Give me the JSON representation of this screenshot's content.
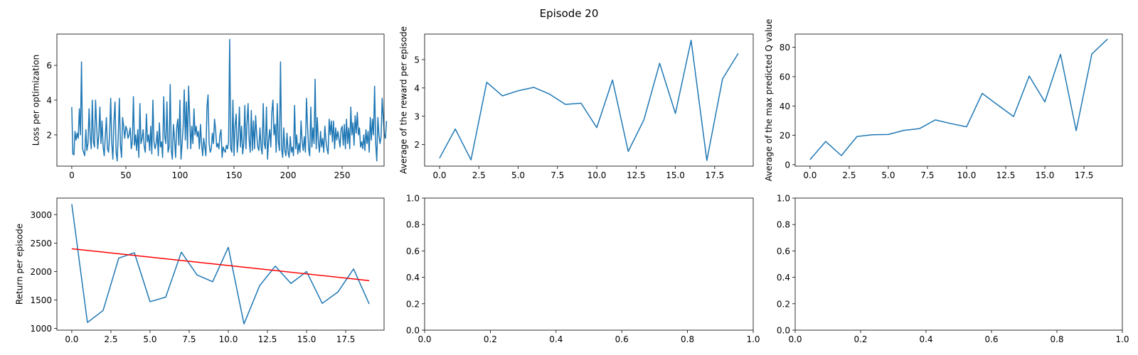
{
  "figure": {
    "title": "Episode 20"
  },
  "chart_data": [
    {
      "type": "line",
      "ylabel": "Loss per optimization",
      "xlim": [
        -13.75,
        288.75
      ],
      "ylim": [
        0.2,
        7.8
      ],
      "xticks": [
        0,
        50,
        100,
        150,
        200,
        250
      ],
      "xtick_labels": [
        "0",
        "50",
        "100",
        "150",
        "200",
        "250"
      ],
      "yticks": [
        2,
        4,
        6
      ],
      "ytick_labels": [
        "2",
        "4",
        "6"
      ],
      "series": [
        {
          "color": "#1f77b4",
          "y": [
            3.6,
            0.9,
            0.85,
            2.2,
            1.7,
            2.1,
            1.8,
            3.5,
            2.0,
            6.2,
            1.2,
            1.0,
            0.8,
            2.3,
            1.1,
            1.5,
            3.5,
            1.9,
            1.2,
            4.0,
            1.6,
            1.3,
            4.0,
            2.5,
            1.2,
            2.0,
            3.6,
            1.5,
            2.8,
            1.3,
            0.8,
            1.9,
            3.0,
            1.2,
            1.0,
            2.0,
            4.1,
            1.5,
            0.6,
            2.8,
            3.9,
            1.0,
            0.5,
            2.0,
            4.1,
            1.4,
            0.7,
            3.0,
            2.5,
            1.8,
            2.5,
            2.3,
            1.8,
            2.0,
            2.4,
            1.2,
            1.6,
            4.2,
            1.4,
            2.0,
            1.1,
            2.3,
            0.7,
            3.8,
            1.5,
            1.8,
            2.3,
            1.3,
            1.0,
            3.2,
            1.6,
            2.0,
            1.1,
            2.5,
            0.9,
            4.0,
            1.6,
            1.2,
            1.5,
            2.2,
            0.8,
            2.7,
            1.3,
            1.6,
            0.7,
            4.2,
            1.9,
            1.5,
            3.9,
            1.0,
            1.3,
            4.9,
            1.1,
            0.6,
            2.6,
            1.8,
            0.7,
            2.4,
            2.9,
            1.4,
            4.0,
            0.6,
            1.5,
            2.5,
            4.6,
            1.7,
            3.9,
            1.2,
            4.8,
            3.0,
            1.2,
            2.5,
            1.5,
            3.5,
            2.0,
            2.5,
            1.9,
            2.2,
            1.2,
            2.6,
            1.5,
            0.8,
            1.8,
            1.3,
            0.8,
            3.6,
            4.3,
            1.5,
            1.0,
            1.2,
            2.1,
            1.5,
            2.9,
            2.3,
            1.3,
            1.5,
            1.2,
            2.0,
            2.3,
            0.7,
            1.3,
            1.1,
            1.0,
            1.4,
            1.2,
            1.6,
            7.5,
            1.2,
            1.0,
            4.0,
            0.8,
            2.5,
            3.2,
            1.0,
            1.8,
            3.6,
            1.3,
            2.5,
            0.9,
            1.5,
            3.7,
            1.2,
            2.6,
            3.8,
            1.7,
            1.0,
            3.4,
            1.1,
            2.8,
            1.2,
            3.1,
            2.0,
            1.3,
            1.1,
            2.4,
            1.3,
            0.9,
            3.8,
            1.5,
            1.2,
            3.6,
            0.6,
            1.7,
            2.3,
            1.3,
            3.3,
            4.0,
            2.0,
            2.6,
            1.0,
            3.8,
            1.6,
            1.1,
            6.2,
            1.2,
            0.7,
            2.4,
            1.1,
            0.8,
            2.1,
            1.0,
            0.7,
            1.9,
            1.0,
            1.3,
            0.8,
            3.7,
            1.2,
            2.0,
            0.9,
            1.5,
            1.0,
            2.8,
            1.6,
            1.1,
            1.9,
            1.0,
            4.1,
            2.5,
            1.2,
            0.8,
            3.6,
            1.3,
            2.4,
            1.5,
            5.2,
            1.2,
            3.0,
            1.6,
            1.0,
            2.2,
            1.3,
            1.8,
            1.0,
            2.5,
            1.7,
            1.2,
            0.9,
            2.9,
            2.0,
            2.8,
            1.6,
            2.8,
            1.2,
            2.4,
            1.7,
            2.2,
            1.8,
            1.3,
            2.3,
            2.5,
            1.4,
            2.6,
            1.2,
            2.9,
            1.5,
            2.4,
            1.2,
            3.6,
            2.0,
            2.7,
            1.4,
            3.1,
            2.1,
            3.3,
            2.0,
            2.4,
            1.3,
            1.6,
            1.2,
            2.0,
            1.1,
            2.3,
            1.5,
            2.2,
            1.0,
            3.0,
            1.7,
            2.9,
            2.0,
            4.8,
            1.5,
            0.5,
            3.0,
            2.0,
            1.5,
            1.9,
            4.1,
            3.0,
            2.0,
            1.8,
            2.8
          ]
        }
      ]
    },
    {
      "type": "line",
      "ylabel": "Average of the reward per episode",
      "xlim": [
        -0.95,
        19.95
      ],
      "ylim": [
        1.24,
        5.9
      ],
      "xticks": [
        0,
        2.5,
        5,
        7.5,
        10,
        12.5,
        15,
        17.5
      ],
      "xtick_labels": [
        "0.0",
        "2.5",
        "5.0",
        "7.5",
        "10.0",
        "12.5",
        "15.0",
        "17.5"
      ],
      "yticks": [
        2,
        3,
        4,
        5
      ],
      "ytick_labels": [
        "2",
        "3",
        "4",
        "5"
      ],
      "series": [
        {
          "color": "#1f77b4",
          "x": [
            0,
            1,
            2,
            3,
            4,
            5,
            6,
            7,
            8,
            9,
            10,
            11,
            12,
            13,
            14,
            15,
            16,
            17,
            18,
            19
          ],
          "y": [
            1.52,
            2.55,
            1.46,
            4.2,
            3.72,
            3.9,
            4.02,
            3.78,
            3.42,
            3.46,
            2.6,
            4.28,
            1.76,
            2.88,
            4.87,
            3.1,
            5.68,
            1.44,
            4.32,
            5.22
          ]
        }
      ]
    },
    {
      "type": "line",
      "ylabel": "Average of the max predicted Q value",
      "xlim": [
        -0.95,
        19.95
      ],
      "ylim": [
        -1,
        89
      ],
      "xticks": [
        0,
        2.5,
        5,
        7.5,
        10,
        12.5,
        15,
        17.5
      ],
      "xtick_labels": [
        "0.0",
        "2.5",
        "5.0",
        "7.5",
        "10.0",
        "12.5",
        "15.0",
        "17.5"
      ],
      "yticks": [
        0,
        20,
        40,
        60,
        80
      ],
      "ytick_labels": [
        "0",
        "20",
        "40",
        "60",
        "80"
      ],
      "series": [
        {
          "color": "#1f77b4",
          "x": [
            0,
            1,
            2,
            3,
            4,
            5,
            6,
            7,
            8,
            9,
            10,
            11,
            12,
            13,
            14,
            15,
            16,
            17,
            18,
            19
          ],
          "y": [
            3.5,
            15.8,
            6.2,
            19.2,
            20.4,
            20.6,
            23.4,
            24.6,
            30.5,
            28,
            25.8,
            48.6,
            40.6,
            32.8,
            60.4,
            42.8,
            75.2,
            23.2,
            75.4,
            85.6
          ]
        }
      ]
    },
    {
      "type": "line",
      "ylabel": "Return per episode",
      "xlim": [
        -0.95,
        19.95
      ],
      "ylim": [
        970,
        3290
      ],
      "xticks": [
        0,
        2.5,
        5,
        7.5,
        10,
        12.5,
        15,
        17.5
      ],
      "xtick_labels": [
        "0.0",
        "2.5",
        "5.0",
        "7.5",
        "10.0",
        "12.5",
        "15.0",
        "17.5"
      ],
      "yticks": [
        1000,
        1500,
        2000,
        2500,
        3000
      ],
      "ytick_labels": [
        "1000",
        "1500",
        "2000",
        "2500",
        "3000"
      ],
      "series": [
        {
          "color": "#1f77b4",
          "x": [
            0,
            1,
            2,
            3,
            4,
            5,
            6,
            7,
            8,
            9,
            10,
            11,
            12,
            13,
            14,
            15,
            16,
            17,
            18,
            19
          ],
          "y": [
            3185,
            1105,
            1315,
            2235,
            2330,
            1470,
            1550,
            2340,
            1940,
            1820,
            2425,
            1080,
            1750,
            2095,
            1790,
            2000,
            1440,
            1640,
            2045,
            1430
          ]
        },
        {
          "color": "#ff0000",
          "x": [
            0,
            19
          ],
          "y": [
            2400,
            1840
          ]
        }
      ]
    },
    {
      "type": "line",
      "ylabel": "",
      "xlim": [
        0,
        1
      ],
      "ylim": [
        0,
        1
      ],
      "xticks": [
        0,
        0.2,
        0.4,
        0.6,
        0.8,
        1
      ],
      "xtick_labels": [
        "0.0",
        "0.2",
        "0.4",
        "0.6",
        "0.8",
        "1.0"
      ],
      "yticks": [
        0,
        0.2,
        0.4,
        0.6,
        0.8,
        1
      ],
      "ytick_labels": [
        "0.0",
        "0.2",
        "0.4",
        "0.6",
        "0.8",
        "1.0"
      ],
      "series": []
    },
    {
      "type": "line",
      "ylabel": "",
      "xlim": [
        0,
        1
      ],
      "ylim": [
        0,
        1
      ],
      "xticks": [
        0,
        0.2,
        0.4,
        0.6,
        0.8,
        1
      ],
      "xtick_labels": [
        "0.0",
        "0.2",
        "0.4",
        "0.6",
        "0.8",
        "1.0"
      ],
      "yticks": [
        0,
        0.2,
        0.4,
        0.6,
        0.8,
        1
      ],
      "ytick_labels": [
        "0.0",
        "0.2",
        "0.4",
        "0.6",
        "0.8",
        "1.0"
      ],
      "series": []
    }
  ]
}
